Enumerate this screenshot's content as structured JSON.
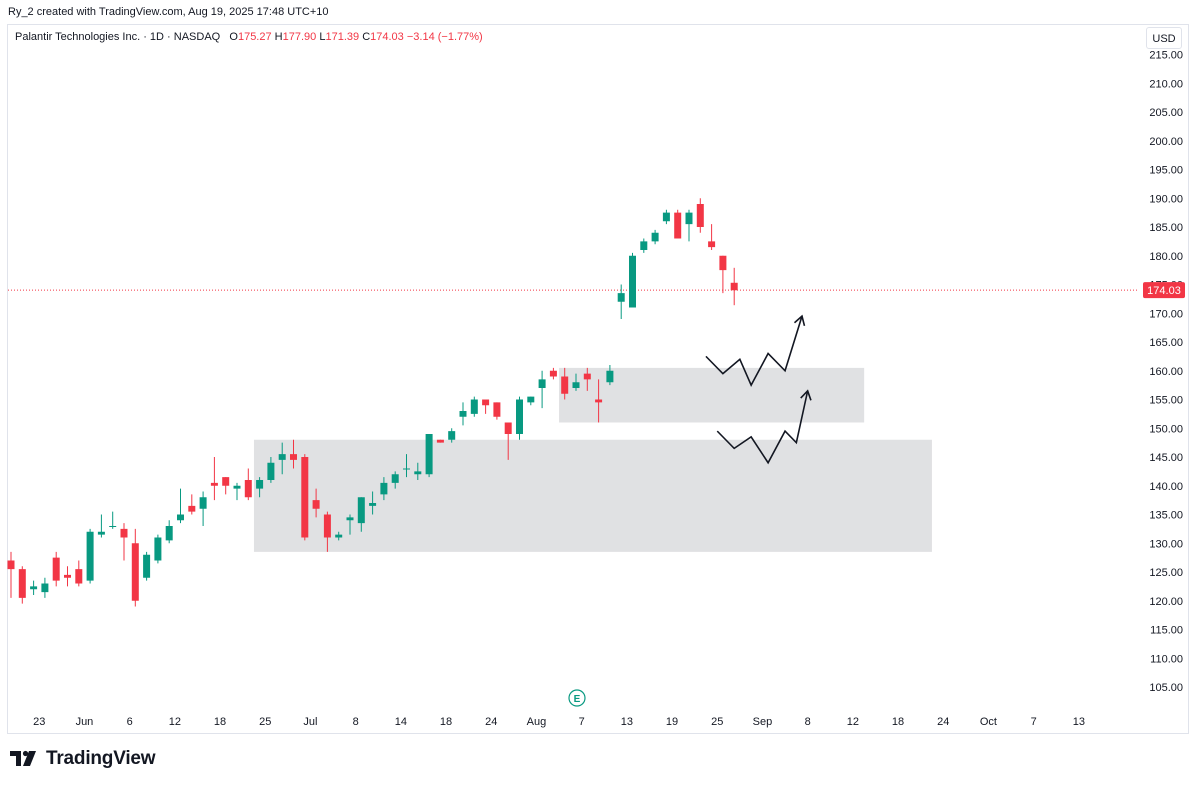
{
  "header": {
    "credit": "Ry_2 created with TradingView.com, Aug 19, 2025 17:48 UTC+10"
  },
  "legend": {
    "symbol": "Palantir Technologies Inc. · 1D · NASDAQ",
    "open_label": "O",
    "open": "175.27",
    "high_label": "H",
    "high": "177.90",
    "low_label": "L",
    "low": "171.39",
    "close_label": "C",
    "close": "174.03",
    "change": "−3.14 (−1.77%)"
  },
  "currency_button": "USD",
  "footer": {
    "brand": "TradingView"
  },
  "earnings_marker": "E",
  "colors": {
    "up": "#089981",
    "down": "#f23645",
    "zone": "#e0e1e3",
    "price_line": "#f23645"
  },
  "chart_data": {
    "type": "candlestick",
    "title": "Palantir Technologies Inc. · 1D · NASDAQ",
    "y_axis": {
      "range": [
        100,
        218
      ],
      "ticks": [
        "215.00",
        "210.00",
        "205.00",
        "200.00",
        "195.00",
        "190.00",
        "185.00",
        "180.00",
        "175.00",
        "170.00",
        "165.00",
        "160.00",
        "155.00",
        "150.00",
        "145.00",
        "140.00",
        "135.00",
        "130.00",
        "125.00",
        "120.00",
        "115.00",
        "110.00",
        "105.00"
      ]
    },
    "x_axis": {
      "ticks": [
        {
          "i": 2.5,
          "label": "23"
        },
        {
          "i": 6.5,
          "label": "Jun"
        },
        {
          "i": 10.5,
          "label": "6"
        },
        {
          "i": 14.5,
          "label": "12"
        },
        {
          "i": 18.5,
          "label": "18"
        },
        {
          "i": 22.5,
          "label": "25"
        },
        {
          "i": 26.5,
          "label": "Jul"
        },
        {
          "i": 30.5,
          "label": "8"
        },
        {
          "i": 34.5,
          "label": "14"
        },
        {
          "i": 38.5,
          "label": "18"
        },
        {
          "i": 42.5,
          "label": "24"
        },
        {
          "i": 46.5,
          "label": "Aug"
        },
        {
          "i": 50.5,
          "label": "7"
        },
        {
          "i": 54.5,
          "label": "13"
        },
        {
          "i": 58.5,
          "label": "19"
        },
        {
          "i": 62.5,
          "label": "25"
        },
        {
          "i": 66.5,
          "label": "Sep"
        },
        {
          "i": 70.5,
          "label": "8"
        },
        {
          "i": 74.5,
          "label": "12"
        },
        {
          "i": 78.5,
          "label": "18"
        },
        {
          "i": 82.5,
          "label": "24"
        },
        {
          "i": 86.5,
          "label": "Oct"
        },
        {
          "i": 90.5,
          "label": "7"
        },
        {
          "i": 94.5,
          "label": "13"
        }
      ]
    },
    "last_price": 174.03,
    "last_price_label": "174.03",
    "candles": [
      {
        "o": 127.0,
        "h": 128.5,
        "l": 120.5,
        "c": 125.5
      },
      {
        "o": 125.5,
        "h": 126.0,
        "l": 119.5,
        "c": 120.5
      },
      {
        "o": 122.0,
        "h": 123.5,
        "l": 121.0,
        "c": 122.5
      },
      {
        "o": 121.5,
        "h": 124.0,
        "l": 120.5,
        "c": 123.0
      },
      {
        "o": 127.5,
        "h": 128.5,
        "l": 122.5,
        "c": 123.5
      },
      {
        "o": 124.5,
        "h": 126.0,
        "l": 122.5,
        "c": 124.0
      },
      {
        "o": 125.5,
        "h": 127.0,
        "l": 122.5,
        "c": 123.0
      },
      {
        "o": 123.5,
        "h": 132.5,
        "l": 123.0,
        "c": 132.0
      },
      {
        "o": 131.5,
        "h": 135.0,
        "l": 131.0,
        "c": 132.0
      },
      {
        "o": 133.0,
        "h": 135.5,
        "l": 132.5,
        "c": 133.0
      },
      {
        "o": 132.5,
        "h": 133.5,
        "l": 127.0,
        "c": 131.0
      },
      {
        "o": 130.0,
        "h": 132.5,
        "l": 119.0,
        "c": 120.0
      },
      {
        "o": 124.0,
        "h": 128.5,
        "l": 123.5,
        "c": 128.0
      },
      {
        "o": 127.0,
        "h": 131.5,
        "l": 126.5,
        "c": 131.0
      },
      {
        "o": 130.5,
        "h": 134.0,
        "l": 130.0,
        "c": 133.0
      },
      {
        "o": 134.0,
        "h": 139.5,
        "l": 133.5,
        "c": 135.0
      },
      {
        "o": 136.5,
        "h": 138.5,
        "l": 135.0,
        "c": 135.5
      },
      {
        "o": 136.0,
        "h": 139.0,
        "l": 133.0,
        "c": 138.0
      },
      {
        "o": 140.5,
        "h": 145.0,
        "l": 137.5,
        "c": 140.0
      },
      {
        "o": 141.5,
        "h": 141.5,
        "l": 138.5,
        "c": 140.0
      },
      {
        "o": 139.5,
        "h": 140.5,
        "l": 137.5,
        "c": 140.0
      },
      {
        "o": 141.0,
        "h": 143.0,
        "l": 137.5,
        "c": 138.0
      },
      {
        "o": 139.5,
        "h": 141.5,
        "l": 138.0,
        "c": 141.0
      },
      {
        "o": 141.0,
        "h": 145.0,
        "l": 140.5,
        "c": 144.0
      },
      {
        "o": 144.5,
        "h": 147.5,
        "l": 142.0,
        "c": 145.5
      },
      {
        "o": 145.5,
        "h": 148.0,
        "l": 143.0,
        "c": 144.5
      },
      {
        "o": 145.0,
        "h": 145.5,
        "l": 130.5,
        "c": 131.0
      },
      {
        "o": 137.5,
        "h": 139.5,
        "l": 134.5,
        "c": 136.0
      },
      {
        "o": 135.0,
        "h": 135.5,
        "l": 128.5,
        "c": 131.0
      },
      {
        "o": 131.0,
        "h": 132.0,
        "l": 130.5,
        "c": 131.5
      },
      {
        "o": 134.0,
        "h": 135.0,
        "l": 131.5,
        "c": 134.5
      },
      {
        "o": 133.5,
        "h": 138.0,
        "l": 132.0,
        "c": 138.0
      },
      {
        "o": 136.5,
        "h": 139.0,
        "l": 135.0,
        "c": 137.0
      },
      {
        "o": 138.5,
        "h": 141.5,
        "l": 137.5,
        "c": 140.5
      },
      {
        "o": 140.5,
        "h": 142.5,
        "l": 139.5,
        "c": 142.0
      },
      {
        "o": 143.0,
        "h": 145.5,
        "l": 141.5,
        "c": 143.0
      },
      {
        "o": 142.0,
        "h": 144.0,
        "l": 141.0,
        "c": 142.5
      },
      {
        "o": 142.0,
        "h": 149.0,
        "l": 141.5,
        "c": 149.0
      },
      {
        "o": 148.0,
        "h": 148.0,
        "l": 147.5,
        "c": 147.5
      },
      {
        "o": 148.0,
        "h": 150.0,
        "l": 147.5,
        "c": 149.5
      },
      {
        "o": 152.0,
        "h": 154.5,
        "l": 150.5,
        "c": 153.0
      },
      {
        "o": 152.5,
        "h": 155.5,
        "l": 152.0,
        "c": 155.0
      },
      {
        "o": 155.0,
        "h": 155.0,
        "l": 152.5,
        "c": 154.0
      },
      {
        "o": 154.5,
        "h": 154.5,
        "l": 151.5,
        "c": 152.0
      },
      {
        "o": 151.0,
        "h": 151.0,
        "l": 144.5,
        "c": 149.0
      },
      {
        "o": 149.0,
        "h": 155.5,
        "l": 148.0,
        "c": 155.0
      },
      {
        "o": 154.5,
        "h": 155.5,
        "l": 154.0,
        "c": 155.5
      },
      {
        "o": 157.0,
        "h": 160.0,
        "l": 153.5,
        "c": 158.5
      },
      {
        "o": 160.0,
        "h": 160.5,
        "l": 158.5,
        "c": 159.0
      },
      {
        "o": 159.0,
        "h": 160.5,
        "l": 155.0,
        "c": 156.0
      },
      {
        "o": 157.0,
        "h": 159.5,
        "l": 156.5,
        "c": 158.0
      },
      {
        "o": 159.5,
        "h": 160.5,
        "l": 156.5,
        "c": 158.5
      },
      {
        "o": 155.0,
        "h": 158.5,
        "l": 151.0,
        "c": 154.5
      },
      {
        "o": 158.0,
        "h": 161.0,
        "l": 157.5,
        "c": 160.0
      },
      {
        "o": 172.0,
        "h": 175.0,
        "l": 169.0,
        "c": 173.5
      },
      {
        "o": 171.0,
        "h": 180.5,
        "l": 171.0,
        "c": 180.0
      },
      {
        "o": 181.0,
        "h": 183.0,
        "l": 180.5,
        "c": 182.5
      },
      {
        "o": 182.5,
        "h": 184.5,
        "l": 182.0,
        "c": 184.0
      },
      {
        "o": 186.0,
        "h": 188.0,
        "l": 185.5,
        "c": 187.5
      },
      {
        "o": 187.5,
        "h": 188.0,
        "l": 183.0,
        "c": 183.0
      },
      {
        "o": 185.5,
        "h": 188.0,
        "l": 182.5,
        "c": 187.5
      },
      {
        "o": 189.0,
        "h": 190.0,
        "l": 184.0,
        "c": 185.0
      },
      {
        "o": 182.5,
        "h": 185.5,
        "l": 181.0,
        "c": 181.5
      },
      {
        "o": 180.0,
        "h": 180.0,
        "l": 173.5,
        "c": 177.5
      },
      {
        "o": 175.3,
        "h": 177.9,
        "l": 171.4,
        "c": 174.0
      }
    ],
    "zones": [
      {
        "i0": 21.5,
        "i1": 81.5,
        "top": 148.0,
        "bottom": 128.5
      },
      {
        "i0": 48.5,
        "i1": 75.5,
        "top": 160.5,
        "bottom": 151.0
      }
    ],
    "arrows": [
      {
        "points": [
          [
            61.5,
            162.5
          ],
          [
            63.0,
            159.5
          ],
          [
            64.5,
            162.0
          ],
          [
            65.5,
            157.5
          ],
          [
            67.0,
            163.0
          ],
          [
            68.5,
            160.0
          ],
          [
            70.0,
            169.5
          ]
        ]
      },
      {
        "points": [
          [
            62.5,
            149.5
          ],
          [
            64.0,
            146.5
          ],
          [
            65.5,
            148.5
          ],
          [
            67.0,
            144.0
          ],
          [
            68.5,
            149.5
          ],
          [
            69.5,
            147.5
          ],
          [
            70.5,
            156.5
          ]
        ]
      }
    ]
  }
}
